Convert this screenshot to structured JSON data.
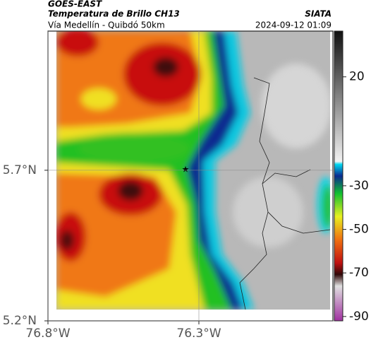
{
  "header": {
    "source": "GOES-EAST",
    "title": "Temperatura de Brillo CH13",
    "subtitle": "Vía Medellín - Quibdó 50km",
    "agency": "SIATA",
    "timestamp": "2024-09-12 01:09"
  },
  "map": {
    "xlim": [
      -76.8,
      -75.856
    ],
    "ylim": [
      5.2,
      6.162
    ],
    "xticks": [
      {
        "value": -76.8,
        "label": "76.8°W"
      },
      {
        "value": -76.3,
        "label": "76.3°W"
      }
    ],
    "yticks": [
      {
        "value": 5.2,
        "label": "5.2°N"
      },
      {
        "value": 5.7,
        "label": "5.7°N"
      }
    ],
    "grid": true
  },
  "colorbar": {
    "lim": [
      -92,
      41
    ],
    "ticks": [
      20,
      -30,
      -50,
      -70,
      -90
    ]
  }
}
